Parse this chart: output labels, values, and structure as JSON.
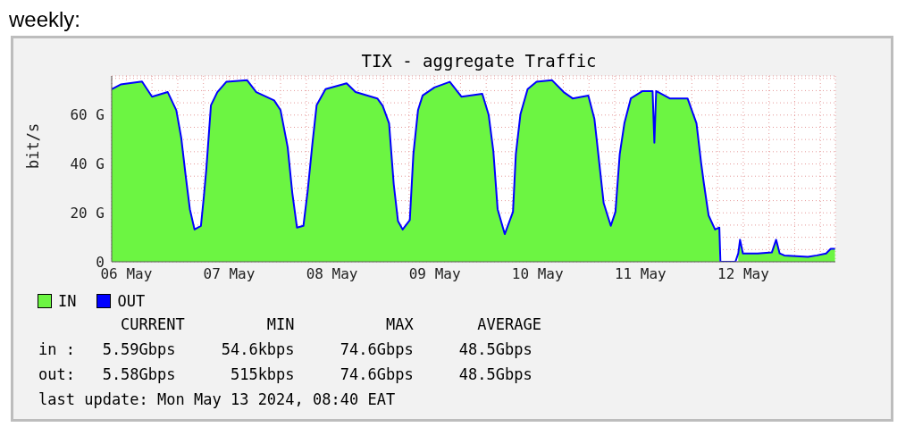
{
  "chart_data": {
    "type": "area",
    "title": "weekly:",
    "subtitle": "TIX - aggregate Traffic",
    "ylabel": "bit/s",
    "x": [
      "2024-05-06T08:35",
      "2024-05-06T10:40",
      "2024-05-06T15:40",
      "2024-05-06T18:00",
      "2024-05-06T21:40",
      "2024-05-06T23:40",
      "2024-05-07T00:50",
      "2024-05-07T01:50",
      "2024-05-07T02:50",
      "2024-05-07T03:55",
      "2024-05-07T05:25",
      "2024-05-07T06:05",
      "2024-05-07T06:40",
      "2024-05-07T07:45",
      "2024-05-07T09:15",
      "2024-05-07T11:20",
      "2024-05-07T16:10",
      "2024-05-07T18:20",
      "2024-05-07T22:30",
      "2024-05-08T00:00",
      "2024-05-08T01:40",
      "2024-05-08T02:45",
      "2024-05-08T03:50",
      "2024-05-08T05:20",
      "2024-05-08T06:20",
      "2024-05-08T07:25",
      "2024-05-08T08:25",
      "2024-05-08T10:30",
      "2024-05-08T15:25",
      "2024-05-08T17:30",
      "2024-05-08T22:35",
      "2024-05-08T23:50",
      "2024-05-09T01:20",
      "2024-05-09T02:25",
      "2024-05-09T03:25",
      "2024-05-09T04:30",
      "2024-05-09T06:10",
      "2024-05-09T07:00",
      "2024-05-09T08:05",
      "2024-05-09T09:10",
      "2024-05-09T11:55",
      "2024-05-09T15:30",
      "2024-05-09T18:15",
      "2024-05-09T23:05",
      "2024-05-10T00:35",
      "2024-05-10T01:40",
      "2024-05-10T02:40",
      "2024-05-10T04:20",
      "2024-05-10T06:15",
      "2024-05-10T06:55",
      "2024-05-10T08:00",
      "2024-05-10T09:40",
      "2024-05-10T11:45",
      "2024-05-10T15:20",
      "2024-05-10T18:05",
      "2024-05-10T20:10",
      "2024-05-10T23:50",
      "2024-05-11T01:15",
      "2024-05-11T01:55",
      "2024-05-11T03:25",
      "2024-05-11T05:05",
      "2024-05-11T06:10",
      "2024-05-11T07:10",
      "2024-05-11T08:15",
      "2024-05-11T09:45",
      "2024-05-11T12:30",
      "2024-05-11T14:50",
      "2024-05-11T15:15",
      "2024-05-11T15:40",
      "2024-05-11T18:50",
      "2024-05-11T23:00",
      "2024-05-12T01:05",
      "2024-05-12T02:10",
      "2024-05-12T02:50",
      "2024-05-12T03:55",
      "2024-05-12T05:25",
      "2024-05-12T06:25",
      "2024-05-12T06:40",
      "2024-05-12T10:10",
      "2024-05-12T10:50",
      "2024-05-12T11:15",
      "2024-05-12T11:55",
      "2024-05-12T15:20",
      "2024-05-12T18:40",
      "2024-05-12T19:40",
      "2024-05-12T20:30",
      "2024-05-12T21:35",
      "2024-05-13T03:05",
      "2024-05-13T05:10",
      "2024-05-13T07:20",
      "2024-05-13T08:25",
      "2024-05-13T09:25"
    ],
    "series": [
      {
        "name": "IN",
        "type": "area",
        "color": "#6cf542",
        "values": [
          70.6,
          72.5,
          73.7,
          67.5,
          69.4,
          62,
          50.5,
          35.5,
          21.5,
          13.2,
          14.7,
          26.4,
          37.7,
          64,
          69.4,
          73.6,
          74.3,
          69.4,
          66,
          62,
          46.8,
          28,
          14,
          14.7,
          29,
          48,
          64,
          70.6,
          73,
          69.4,
          66.8,
          63.8,
          56.6,
          31.7,
          16.6,
          13.2,
          17,
          44,
          62,
          68,
          71.3,
          73.6,
          67.5,
          68.7,
          60,
          45.3,
          21.5,
          11.3,
          20.4,
          44,
          60.4,
          70.6,
          73.6,
          74.3,
          69.4,
          66.8,
          68,
          58.5,
          48,
          24,
          14.7,
          20.4,
          44,
          56.6,
          66.8,
          69.8,
          69.8,
          48.7,
          69.8,
          66.8,
          66.8,
          56.6,
          40.4,
          31.7,
          18.9,
          13.2,
          14,
          null,
          null,
          3.4,
          9,
          3.4,
          3.4,
          3.8,
          9,
          3.4,
          2.6,
          2,
          2.6,
          3.4,
          5.3,
          5.3
        ]
      },
      {
        "name": "OUT",
        "type": "line",
        "color": "#0000ff",
        "values": [
          70.6,
          72.5,
          73.7,
          67.5,
          69.4,
          62,
          50.5,
          35.5,
          21.5,
          13.2,
          14.7,
          26.4,
          37.7,
          64,
          69.4,
          73.6,
          74.3,
          69.4,
          66,
          62,
          46.8,
          28,
          14,
          14.7,
          29,
          48,
          64,
          70.6,
          73,
          69.4,
          66.8,
          63.8,
          56.6,
          31.7,
          16.6,
          13.2,
          17,
          44,
          62,
          68,
          71.3,
          73.6,
          67.5,
          68.7,
          60,
          45.3,
          21.5,
          11.3,
          20.4,
          44,
          60.4,
          70.6,
          73.6,
          74.3,
          69.4,
          66.8,
          68,
          58.5,
          48,
          24,
          14.7,
          20.4,
          44,
          56.6,
          66.8,
          69.8,
          69.8,
          48.7,
          69.8,
          66.8,
          66.8,
          56.6,
          40.4,
          31.7,
          18.9,
          13.2,
          14,
          0,
          0,
          3.4,
          9,
          3.4,
          3.4,
          3.8,
          9,
          3.4,
          2.6,
          2,
          2.6,
          3.4,
          5.3,
          5.3
        ]
      }
    ],
    "xlim": [
      "2024-05-06T08:35",
      "2024-05-13T09:30"
    ],
    "xticks": [
      {
        "value": "2024-05-06T12:00",
        "label": "06 May"
      },
      {
        "value": "2024-05-06T18:00",
        "label": null
      },
      {
        "value": "2024-05-07T00:00",
        "label": null
      },
      {
        "value": "2024-05-07T06:00",
        "label": null
      },
      {
        "value": "2024-05-07T12:00",
        "label": "07 May"
      },
      {
        "value": "2024-05-07T18:00",
        "label": null
      },
      {
        "value": "2024-05-08T00:00",
        "label": null
      },
      {
        "value": "2024-05-08T06:00",
        "label": null
      },
      {
        "value": "2024-05-08T12:00",
        "label": "08 May"
      },
      {
        "value": "2024-05-08T18:00",
        "label": null
      },
      {
        "value": "2024-05-09T00:00",
        "label": null
      },
      {
        "value": "2024-05-09T06:00",
        "label": null
      },
      {
        "value": "2024-05-09T12:00",
        "label": "09 May"
      },
      {
        "value": "2024-05-09T18:00",
        "label": null
      },
      {
        "value": "2024-05-10T00:00",
        "label": null
      },
      {
        "value": "2024-05-10T06:00",
        "label": null
      },
      {
        "value": "2024-05-10T12:00",
        "label": "10 May"
      },
      {
        "value": "2024-05-10T18:00",
        "label": null
      },
      {
        "value": "2024-05-11T00:00",
        "label": null
      },
      {
        "value": "2024-05-11T06:00",
        "label": null
      },
      {
        "value": "2024-05-11T12:00",
        "label": "11 May"
      },
      {
        "value": "2024-05-11T18:00",
        "label": null
      },
      {
        "value": "2024-05-12T00:00",
        "label": null
      },
      {
        "value": "2024-05-12T06:00",
        "label": null
      },
      {
        "value": "2024-05-12T12:00",
        "label": "12 May"
      },
      {
        "value": "2024-05-12T18:00",
        "label": null
      },
      {
        "value": "2024-05-13T00:00",
        "label": null
      },
      {
        "value": "2024-05-13T06:00",
        "label": null
      }
    ],
    "ylim": [
      0,
      76
    ],
    "yticks": [
      0,
      {
        "value": 5,
        "label": null
      },
      {
        "value": 10,
        "label": null
      },
      {
        "value": 15,
        "label": null
      },
      {
        "value": 20,
        "label": "20 G"
      },
      {
        "value": 25,
        "label": null
      },
      {
        "value": 30,
        "label": null
      },
      {
        "value": 35,
        "label": null
      },
      {
        "value": 40,
        "label": "40 G"
      },
      {
        "value": 45,
        "label": null
      },
      {
        "value": 50,
        "label": null
      },
      {
        "value": 55,
        "label": null
      },
      {
        "value": 60,
        "label": "60 G"
      },
      {
        "value": 65,
        "label": null
      },
      {
        "value": 70,
        "label": null
      },
      {
        "value": 75,
        "label": null
      }
    ],
    "grid": true,
    "legend": "bottom left",
    "annotations": [
      "         CURRENT         MIN          MAX       AVERAGE",
      "in :   5.59Gbps     54.6kbps     74.6Gbps     48.5Gbps",
      "out:   5.58Gbps      515kbps     74.6Gbps     48.5Gbps",
      "last update: Mon May 13 2024, 08:40 EAT"
    ]
  }
}
